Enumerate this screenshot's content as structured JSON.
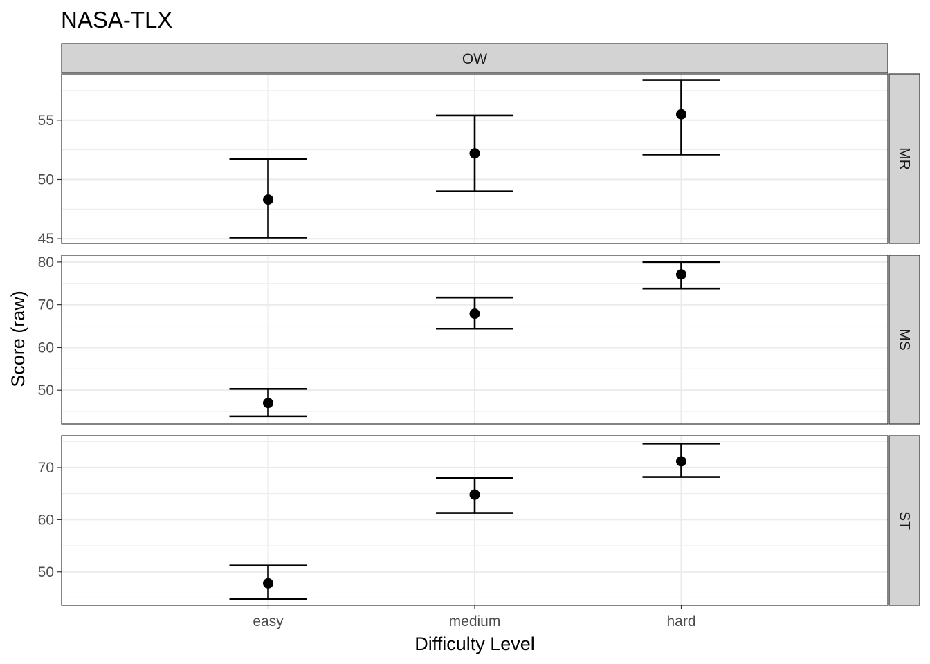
{
  "chart_data": {
    "type": "scatter",
    "title": "NASA-TLX",
    "xlabel": "Difficulty Level",
    "ylabel": "Score (raw)",
    "categories": [
      "easy",
      "medium",
      "hard"
    ],
    "column_facet": "OW",
    "grid": true,
    "panels": [
      {
        "facet": "MR",
        "ylim": [
          44.6,
          58.9
        ],
        "yticks": [
          45,
          50,
          55
        ],
        "series": [
          {
            "x": "easy",
            "mean": 48.3,
            "lower": 45.1,
            "upper": 51.7
          },
          {
            "x": "medium",
            "mean": 52.2,
            "lower": 49.0,
            "upper": 55.4
          },
          {
            "x": "hard",
            "mean": 55.5,
            "lower": 52.1,
            "upper": 58.4
          }
        ]
      },
      {
        "facet": "MS",
        "ylim": [
          42.1,
          81.6
        ],
        "yticks": [
          50,
          60,
          70,
          80
        ],
        "series": [
          {
            "x": "easy",
            "mean": 47.0,
            "lower": 43.9,
            "upper": 50.3
          },
          {
            "x": "medium",
            "mean": 67.9,
            "lower": 64.4,
            "upper": 71.7
          },
          {
            "x": "hard",
            "mean": 77.1,
            "lower": 73.8,
            "upper": 80.0
          }
        ]
      },
      {
        "facet": "ST",
        "ylim": [
          43.6,
          76.1
        ],
        "yticks": [
          50,
          60,
          70
        ],
        "series": [
          {
            "x": "easy",
            "mean": 47.8,
            "lower": 44.8,
            "upper": 51.2
          },
          {
            "x": "medium",
            "mean": 64.8,
            "lower": 61.3,
            "upper": 68.0
          },
          {
            "x": "hard",
            "mean": 71.2,
            "lower": 68.2,
            "upper": 74.6
          }
        ]
      }
    ]
  }
}
